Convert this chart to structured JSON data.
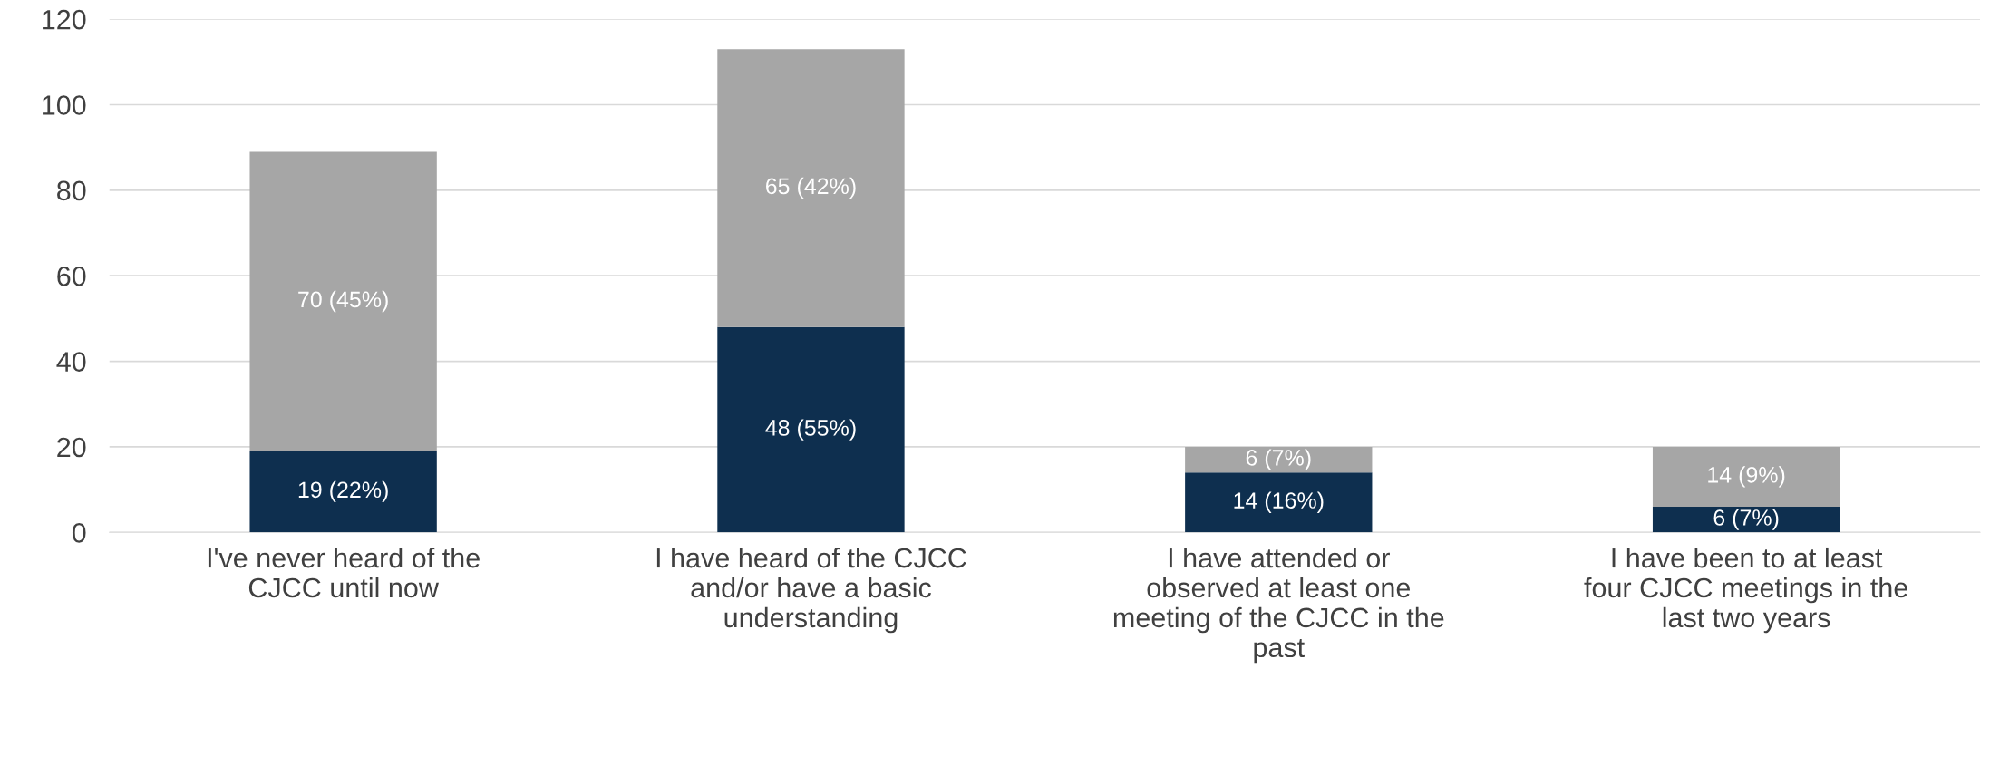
{
  "chart_data": {
    "type": "bar",
    "stacked": true,
    "categories": [
      "I've never heard of the\nCJCC until now",
      "I have heard of the CJCC\nand/or have a basic\nunderstanding",
      "I have attended or\nobserved at least one\nmeeting of the CJCC in the\npast",
      "I have been to at least\nfour CJCC meetings in the\nlast two years"
    ],
    "series": [
      {
        "color": "#0e2f4f",
        "values": [
          19,
          48,
          14,
          6
        ],
        "value_labels": [
          "19 (22%)",
          "48 (55%)",
          "14 (16%)",
          "6 (7%)"
        ]
      },
      {
        "color": "#a6a6a6",
        "values": [
          70,
          65,
          6,
          14
        ],
        "value_labels": [
          "70 (45%)",
          "65 (42%)",
          "6 (7%)",
          "14 (9%)"
        ]
      }
    ],
    "ylim": [
      0,
      120
    ],
    "yticks": [
      0,
      20,
      40,
      60,
      80,
      100,
      120
    ],
    "grid": "y"
  }
}
